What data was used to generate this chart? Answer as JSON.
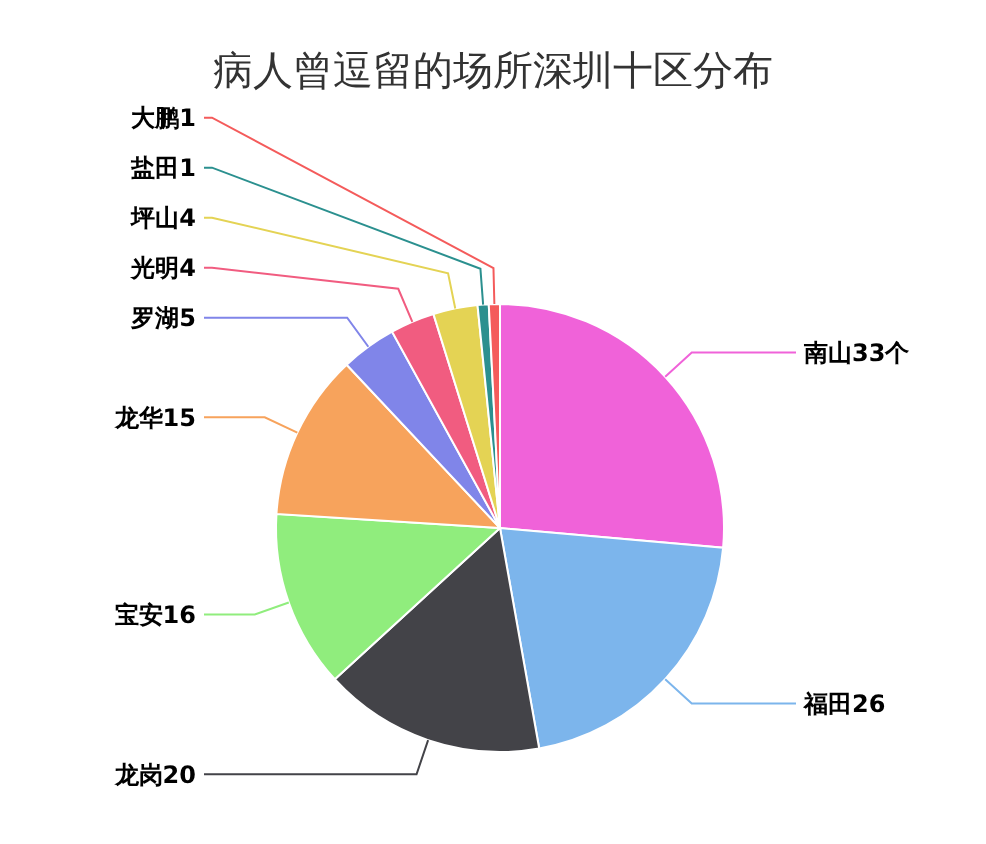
{
  "chart_data": {
    "type": "pie",
    "title": "病人曾逗留的场所深圳十区分布",
    "categories": [
      "南山",
      "福田",
      "龙岗",
      "宝安",
      "龙华",
      "罗湖",
      "光明",
      "坪山",
      "盐田",
      "大鹏"
    ],
    "values": [
      33,
      26,
      20,
      16,
      15,
      5,
      4,
      4,
      1,
      1
    ],
    "value_labels": [
      "33个",
      "26",
      "20",
      "16",
      "15",
      "5",
      "4",
      "4",
      "1",
      "1"
    ],
    "colors": [
      "#f062d9",
      "#7cb5ec",
      "#434348",
      "#90ed7d",
      "#f7a35c",
      "#8085e9",
      "#f15c80",
      "#e4d354",
      "#2b908f",
      "#f45b5b"
    ]
  }
}
